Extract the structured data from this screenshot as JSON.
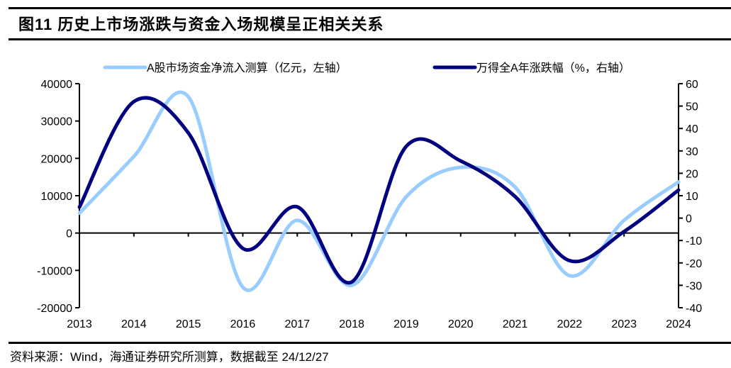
{
  "title": "图11 历史上市场涨跌与资金入场规模呈正相关关系",
  "source": "资料来源：Wind，海通证券研究所测算，数据截至 24/12/27",
  "chart_data": {
    "type": "line",
    "smooth": true,
    "categories": [
      "2013",
      "2014",
      "2015",
      "2016",
      "2017",
      "2018",
      "2019",
      "2020",
      "2021",
      "2022",
      "2023",
      "2024"
    ],
    "series": [
      {
        "name": "A股市场资金净流入测算（亿元，左轴）",
        "axis": "left",
        "color": "#99CCFF",
        "values": [
          5300,
          20500,
          36500,
          -14500,
          3400,
          -14000,
          9700,
          17600,
          12300,
          -11400,
          3400,
          13700
        ]
      },
      {
        "name": "万得全A年涨跌幅（%，右轴）",
        "axis": "right",
        "color": "#000080",
        "values": [
          4.9,
          52,
          38,
          -13.5,
          5,
          -28.5,
          32,
          25.5,
          9.6,
          -19,
          -6,
          12.5
        ]
      }
    ],
    "left_axis": {
      "range": [
        -20000,
        40000
      ],
      "ticks": [
        "-20000",
        "-10000",
        "0",
        "10000",
        "20000",
        "30000",
        "40000"
      ]
    },
    "right_axis": {
      "range": [
        -40,
        60
      ],
      "ticks": [
        "-40",
        "-30",
        "-20",
        "-10",
        "0",
        "10",
        "20",
        "30",
        "40",
        "50",
        "60"
      ]
    },
    "legend_placement": "top",
    "grid": false
  }
}
